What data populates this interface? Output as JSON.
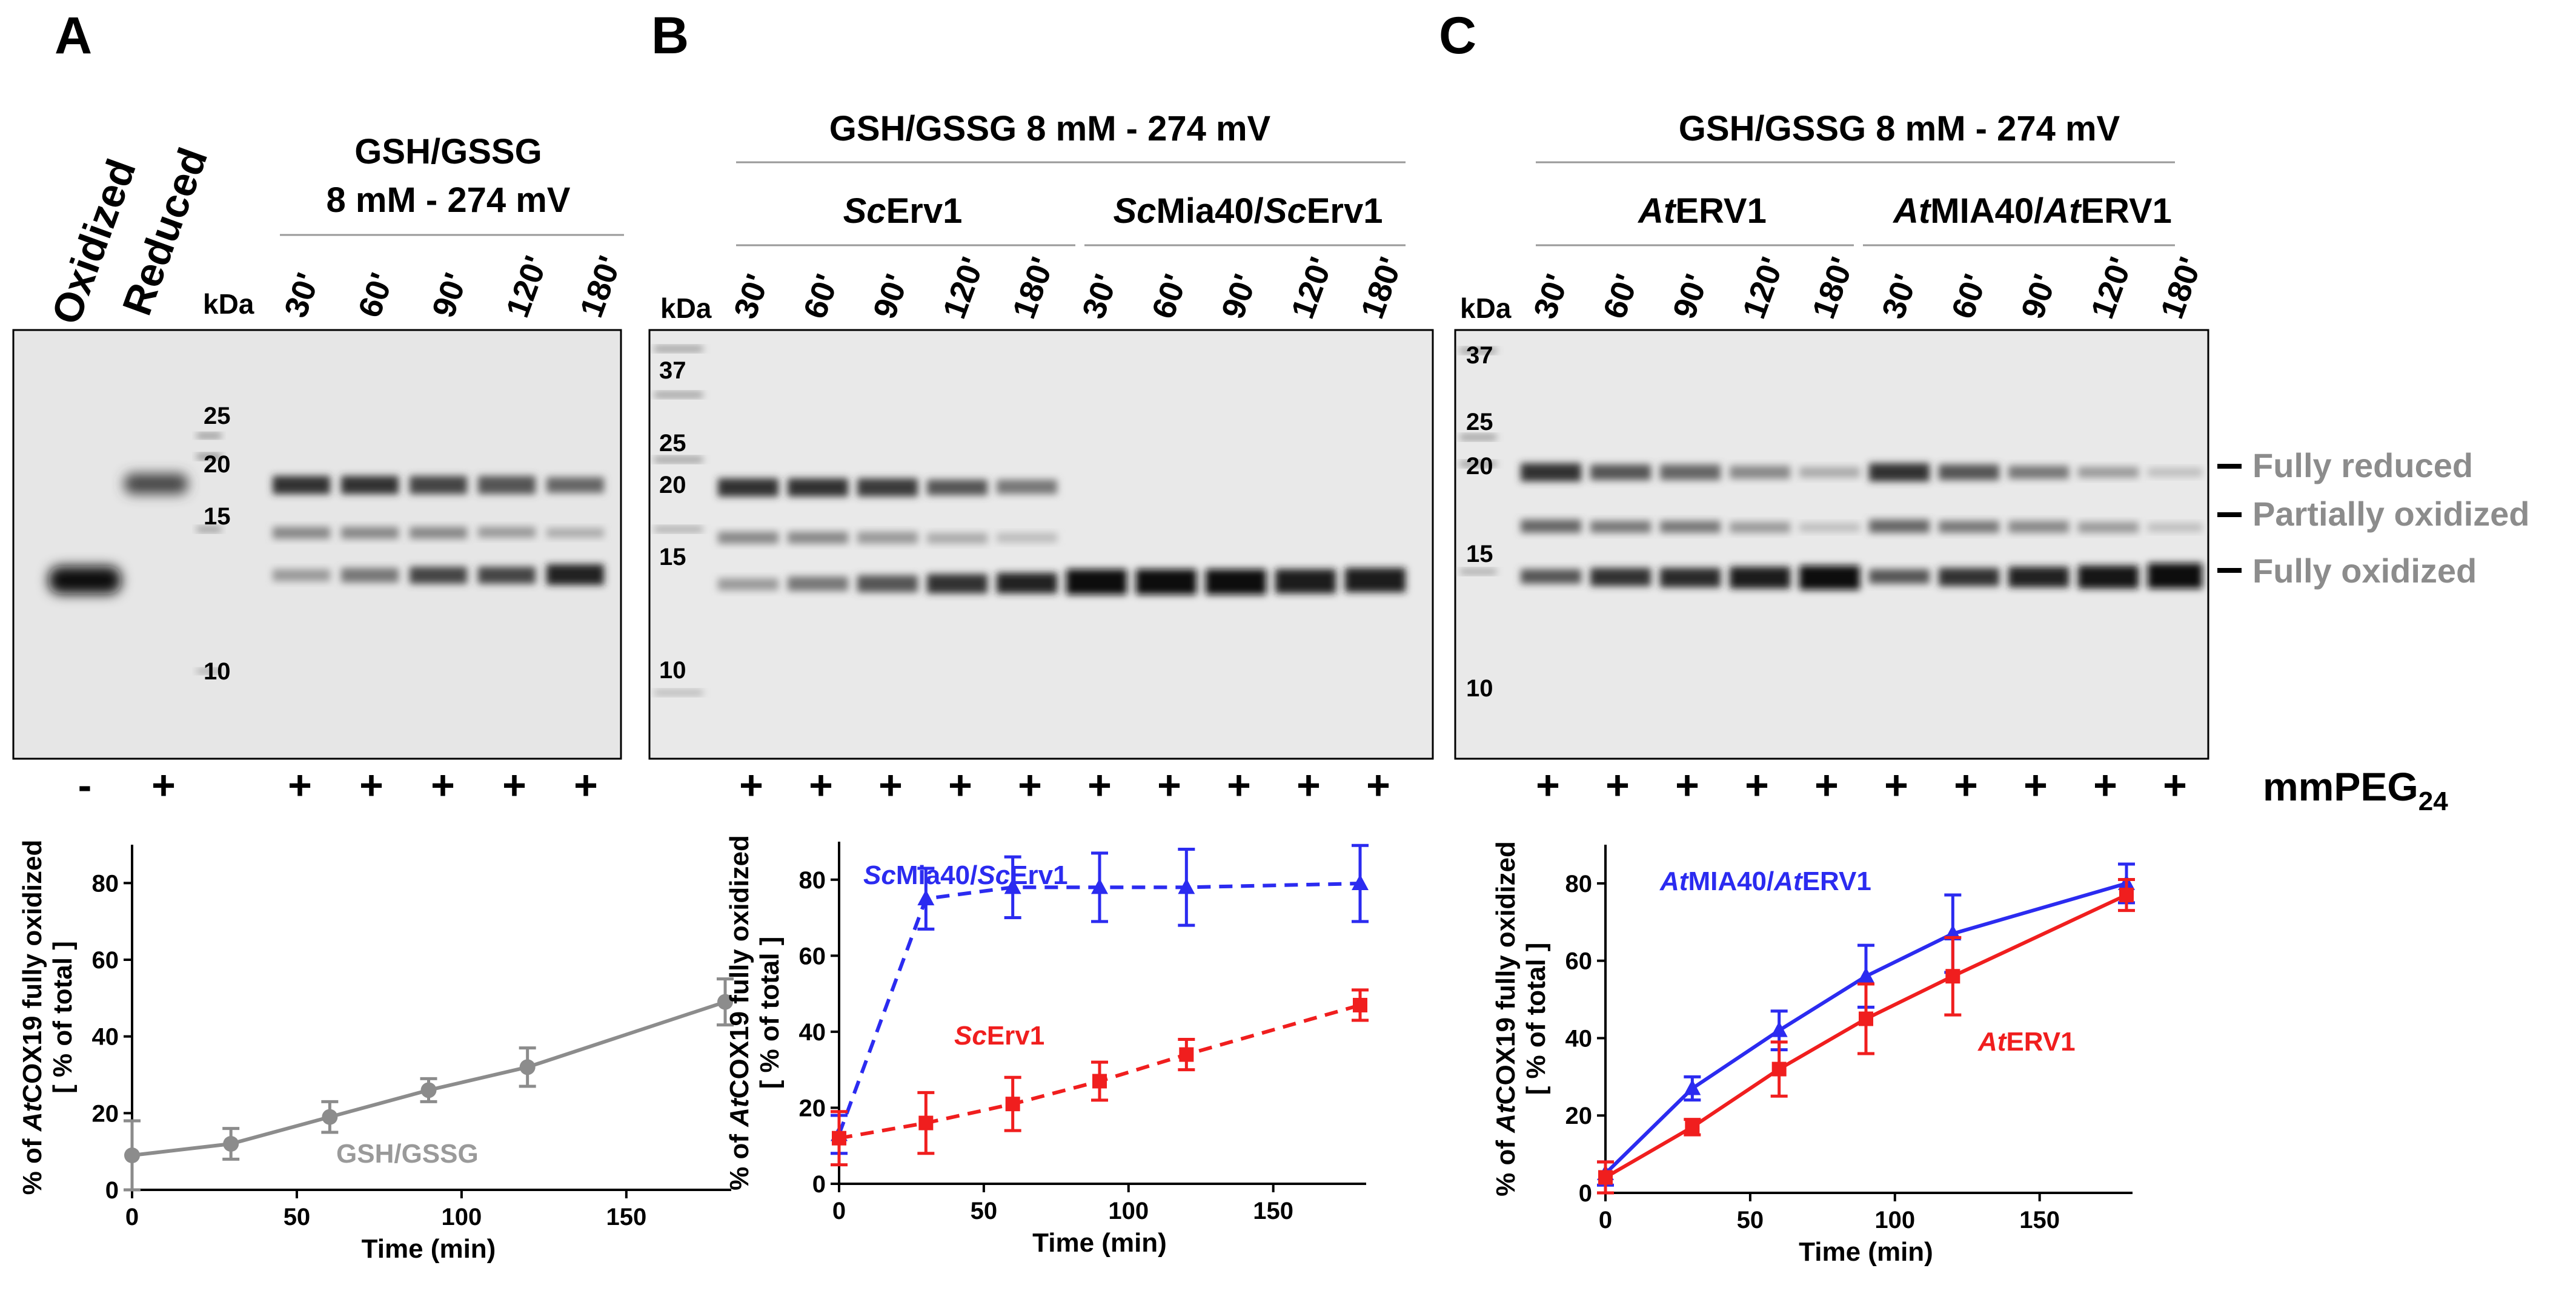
{
  "panels": [
    {
      "letter": "A",
      "header": [
        "GSH/GSSG",
        "8 mM - 274 mV"
      ],
      "group_labels": [],
      "extra_lanes": [
        "Oxidized",
        "Reduced"
      ],
      "lanes": [
        "30'",
        "60'",
        "90'",
        "120'",
        "180'"
      ],
      "kda_label": "kDa",
      "markers": [
        "25",
        "20",
        "15",
        "10"
      ],
      "signs": [
        "-",
        "+",
        "+",
        "+",
        "+",
        "+",
        "+"
      ]
    },
    {
      "letter": "B",
      "header": [
        "GSH/GSSG 8 mM - 274 mV"
      ],
      "group_labels": [
        {
          "italic": "Sc",
          "text": "Erv1"
        },
        {
          "italic": "Sc",
          "text": "Mia40/",
          "italic2": "Sc",
          "text2": "Erv1"
        }
      ],
      "lanes": [
        "30'",
        "60'",
        "90'",
        "120'",
        "180'",
        "30'",
        "60'",
        "90'",
        "120'",
        "180'"
      ],
      "kda_label": "kDa",
      "markers": [
        "37",
        "25",
        "20",
        "15",
        "10"
      ],
      "signs": [
        "+",
        "+",
        "+",
        "+",
        "+",
        "+",
        "+",
        "+",
        "+",
        "+"
      ]
    },
    {
      "letter": "C",
      "header": [
        "GSH/GSSG 8 mM - 274 mV"
      ],
      "group_labels": [
        {
          "italic": "At",
          "text": "ERV1"
        },
        {
          "italic": "At",
          "text": "MIA40/",
          "italic2": "At",
          "text2": "ERV1"
        }
      ],
      "lanes": [
        "30'",
        "60'",
        "90'",
        "120'",
        "180'",
        "30'",
        "60'",
        "90'",
        "120'",
        "180'"
      ],
      "kda_label": "kDa",
      "markers": [
        "37",
        "25",
        "20",
        "15",
        "10"
      ],
      "signs": [
        "+",
        "+",
        "+",
        "+",
        "+",
        "+",
        "+",
        "+",
        "+",
        "+"
      ]
    }
  ],
  "band_labels": [
    "Fully reduced",
    "Partially oxidized",
    "Fully oxidized"
  ],
  "reagent_label": {
    "text": "mmPEG",
    "sub": "24"
  },
  "axis_labels": {
    "ylabel_line1": "% of AtCOX19 fully oxidized",
    "ylabel_line1_prefix": "% of ",
    "ylabel_line1_italic": "At",
    "ylabel_line1_suffix": "COX19 fully oxidized",
    "ylabel_line2": "[ % of total ]",
    "xlabel": "Time (min)"
  },
  "chart_data": [
    {
      "type": "line",
      "panel": "A",
      "title": "",
      "xlabel": "Time (min)",
      "ylabel": "% of AtCOX19 fully oxidized [ % of total ]",
      "xlim": [
        0,
        180
      ],
      "ylim": [
        0,
        90
      ],
      "xticks": [
        0,
        50,
        100,
        150
      ],
      "yticks": [
        0,
        20,
        40,
        60,
        80
      ],
      "series": [
        {
          "name": "GSH/GSSG",
          "color": "#8c8c8c",
          "marker": "circle",
          "dashed": false,
          "x": [
            0,
            30,
            60,
            90,
            120,
            180
          ],
          "y": [
            9,
            12,
            19,
            26,
            32,
            49
          ],
          "err": [
            9,
            4,
            4,
            3,
            5,
            6
          ]
        }
      ]
    },
    {
      "type": "line",
      "panel": "B",
      "title": "",
      "xlabel": "Time (min)",
      "ylabel": "% of AtCOX19 fully oxidized [ % of total ]",
      "xlim": [
        0,
        180
      ],
      "ylim": [
        0,
        90
      ],
      "xticks": [
        0,
        50,
        100,
        150
      ],
      "yticks": [
        0,
        20,
        40,
        60,
        80
      ],
      "series": [
        {
          "name": "ScMia40/ScErv1",
          "label_italic": "Sc",
          "label_text": "Mia40/",
          "label_italic2": "Sc",
          "label_text2": "Erv1",
          "color": "#2b2bf0",
          "marker": "triangle",
          "dashed": true,
          "x": [
            0,
            30,
            60,
            90,
            120,
            180
          ],
          "y": [
            13,
            75,
            78,
            78,
            78,
            79
          ],
          "err": [
            5,
            8,
            8,
            9,
            10,
            10
          ]
        },
        {
          "name": "ScErv1",
          "label_italic": "Sc",
          "label_text": "Erv1",
          "color": "#f01e1e",
          "marker": "square",
          "dashed": true,
          "x": [
            0,
            30,
            60,
            90,
            120,
            180
          ],
          "y": [
            12,
            16,
            21,
            27,
            34,
            47
          ],
          "err": [
            7,
            8,
            7,
            5,
            4,
            4
          ]
        }
      ]
    },
    {
      "type": "line",
      "panel": "C",
      "title": "",
      "xlabel": "Time (min)",
      "ylabel": "% of AtCOX19 fully oxidized [ % of total ]",
      "xlim": [
        0,
        180
      ],
      "ylim": [
        0,
        90
      ],
      "xticks": [
        0,
        50,
        100,
        150
      ],
      "yticks": [
        0,
        20,
        40,
        60,
        80
      ],
      "series": [
        {
          "name": "AtMIA40/AtERV1",
          "label_italic": "At",
          "label_text": "MIA40/",
          "label_italic2": "At",
          "label_text2": "ERV1",
          "color": "#2b2bf0",
          "marker": "triangle",
          "dashed": false,
          "x": [
            0,
            30,
            60,
            90,
            120,
            180
          ],
          "y": [
            5,
            27,
            42,
            56,
            67,
            80
          ],
          "err": [
            3,
            3,
            5,
            8,
            10,
            5
          ]
        },
        {
          "name": "AtERV1",
          "label_italic": "At",
          "label_text": "ERV1",
          "color": "#f01e1e",
          "marker": "square",
          "dashed": false,
          "x": [
            0,
            30,
            60,
            90,
            120,
            180
          ],
          "y": [
            4,
            17,
            32,
            45,
            56,
            77
          ],
          "err": [
            4,
            2,
            7,
            9,
            10,
            4
          ]
        }
      ]
    }
  ]
}
